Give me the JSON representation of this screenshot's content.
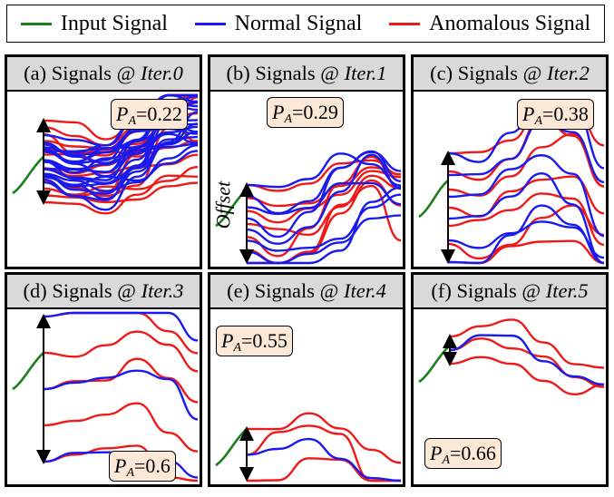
{
  "legend": {
    "items": [
      {
        "label": "Input Signal",
        "color": "#1a7f1a"
      },
      {
        "label": "Normal Signal",
        "color": "#1a1aee"
      },
      {
        "label": "Anomalous Signal",
        "color": "#ee1a1a"
      }
    ]
  },
  "panels": [
    {
      "prefix": "(a) Signals @ ",
      "iter": "Iter.0",
      "pa_value": "=0.22",
      "offset_label": ""
    },
    {
      "prefix": "(b) Signals @ ",
      "iter": "Iter.1",
      "pa_value": "=0.29",
      "offset_label": "Offset"
    },
    {
      "prefix": "(c) Signals @ ",
      "iter": "Iter.2",
      "pa_value": "=0.38",
      "offset_label": ""
    },
    {
      "prefix": "(d) Signals @ ",
      "iter": "Iter.3",
      "pa_value": "=0.6",
      "offset_label": ""
    },
    {
      "prefix": "(e) Signals @ ",
      "iter": "Iter.4",
      "pa_value": "=0.55",
      "offset_label": ""
    },
    {
      "prefix": "(f) Signals @ ",
      "iter": "Iter.5",
      "pa_value": "=0.66",
      "offset_label": ""
    }
  ],
  "pa_symbol": "P",
  "pa_subscript": "A",
  "chart_data": {
    "type": "line",
    "panels": [
      {
        "iteration": 0,
        "anomaly_probability": 0.22,
        "normal_count": 22,
        "anomalous_count": 13
      },
      {
        "iteration": 1,
        "anomaly_probability": 0.29,
        "normal_count": 8,
        "anomalous_count": 7
      },
      {
        "iteration": 2,
        "anomaly_probability": 0.38,
        "normal_count": 6,
        "anomalous_count": 7
      },
      {
        "iteration": 3,
        "anomaly_probability": 0.6,
        "normal_count": 3,
        "anomalous_count": 5
      },
      {
        "iteration": 4,
        "anomaly_probability": 0.55,
        "normal_count": 1,
        "anomalous_count": 3
      },
      {
        "iteration": 5,
        "anomaly_probability": 0.66,
        "normal_count": 1,
        "anomalous_count": 3
      }
    ]
  }
}
